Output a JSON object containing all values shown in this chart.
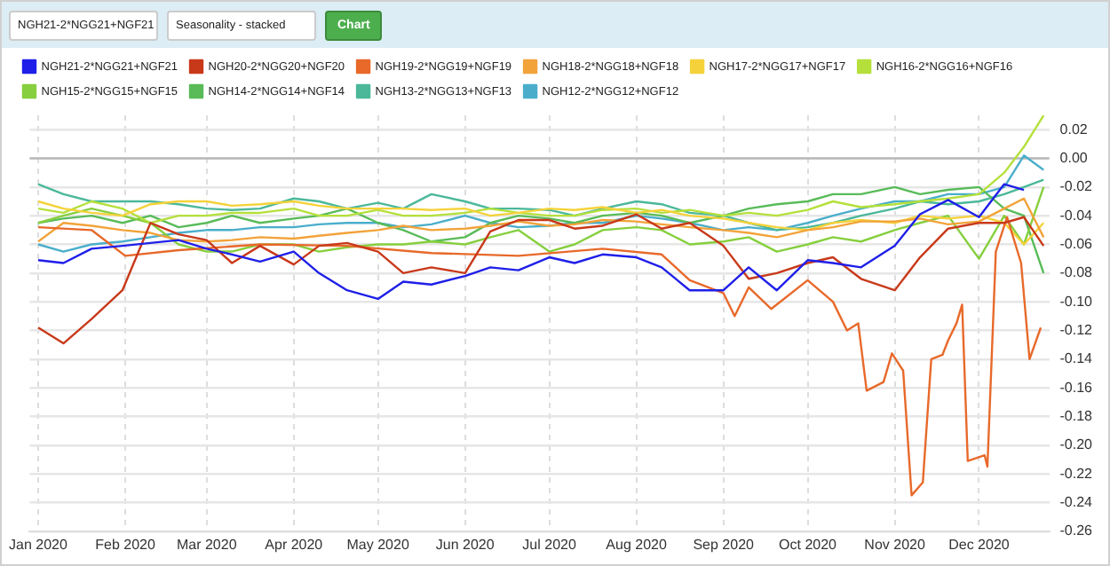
{
  "chart_data": {
    "type": "line",
    "annotations": [
      "NGH21-2*NGG21+NGF21",
      "Seasonality - stacked",
      "Chart"
    ],
    "x": [
      "2020-01-01",
      "2020-01-10",
      "2020-01-20",
      "2020-01-31",
      "2020-02-10",
      "2020-02-20",
      "2020-03-01",
      "2020-03-10",
      "2020-03-20",
      "2020-04-01",
      "2020-04-10",
      "2020-04-20",
      "2020-05-01",
      "2020-05-10",
      "2020-05-20",
      "2020-06-01",
      "2020-06-10",
      "2020-06-20",
      "2020-07-01",
      "2020-07-10",
      "2020-07-20",
      "2020-08-01",
      "2020-08-10",
      "2020-08-20",
      "2020-09-01",
      "2020-09-10",
      "2020-09-20",
      "2020-10-01",
      "2020-10-10",
      "2020-10-20",
      "2020-11-01",
      "2020-11-10",
      "2020-11-20",
      "2020-12-01",
      "2020-12-10",
      "2020-12-17",
      "2020-12-24"
    ],
    "series": [
      {
        "name": "NGH21-2*NGG21+NGF21",
        "color": "#1f1fe8",
        "values": [
          -0.071,
          -0.073,
          -0.063,
          -0.061,
          -0.059,
          -0.057,
          -0.063,
          -0.067,
          -0.072,
          -0.065,
          -0.08,
          -0.092,
          -0.098,
          -0.086,
          -0.088,
          -0.082,
          -0.076,
          -0.078,
          -0.069,
          -0.073,
          -0.067,
          -0.069,
          -0.076,
          -0.092,
          -0.092,
          -0.076,
          -0.092,
          -0.071,
          -0.073,
          -0.076,
          -0.061,
          -0.039,
          -0.029,
          -0.041,
          -0.018,
          -0.022,
          null
        ]
      },
      {
        "name": "NGH20-2*NGG20+NGF20",
        "color": "#c8391a",
        "values": [
          -0.118,
          -0.129,
          -0.112,
          -0.092,
          -0.045,
          -0.053,
          -0.057,
          -0.073,
          -0.061,
          -0.074,
          -0.061,
          -0.059,
          -0.065,
          -0.08,
          -0.076,
          -0.08,
          -0.051,
          -0.043,
          -0.043,
          -0.049,
          -0.047,
          -0.039,
          -0.049,
          -0.045,
          -0.061,
          -0.084,
          -0.08,
          -0.073,
          -0.069,
          -0.084,
          -0.092,
          -0.069,
          -0.049,
          -0.045,
          -0.045,
          -0.041,
          -0.061
        ]
      },
      {
        "name": "NGH19-2*NGG19+NGF19",
        "color": "#e8692a",
        "x": [
          "2020-01-01",
          "2020-01-20",
          "2020-02-01",
          "2020-02-20",
          "2020-03-20",
          "2020-04-20",
          "2020-05-20",
          "2020-06-20",
          "2020-07-20",
          "2020-08-10",
          "2020-08-20",
          "2020-09-01",
          "2020-09-05",
          "2020-09-10",
          "2020-09-18",
          "2020-10-01",
          "2020-10-10",
          "2020-10-15",
          "2020-10-19",
          "2020-10-22",
          "2020-10-28",
          "2020-10-31",
          "2020-11-04",
          "2020-11-07",
          "2020-11-11",
          "2020-11-14",
          "2020-11-18",
          "2020-11-20",
          "2020-11-23",
          "2020-11-25",
          "2020-11-27",
          "2020-12-03",
          "2020-12-04",
          "2020-12-07",
          "2020-12-11",
          "2020-12-16",
          "2020-12-19",
          "2020-12-23"
        ],
        "values": [
          -0.048,
          -0.05,
          -0.068,
          -0.064,
          -0.06,
          -0.061,
          -0.066,
          -0.068,
          -0.063,
          -0.067,
          -0.085,
          -0.094,
          -0.11,
          -0.09,
          -0.105,
          -0.085,
          -0.1,
          -0.12,
          -0.115,
          -0.162,
          -0.156,
          -0.136,
          -0.148,
          -0.235,
          -0.226,
          -0.14,
          -0.137,
          -0.127,
          -0.115,
          -0.102,
          -0.211,
          -0.207,
          -0.215,
          -0.065,
          -0.041,
          -0.073,
          -0.14,
          -0.118
        ]
      },
      {
        "name": "NGH18-2*NGG18+NGF18",
        "color": "#f2a33a",
        "values": [
          -0.058,
          -0.045,
          -0.047,
          -0.05,
          -0.052,
          -0.057,
          -0.058,
          -0.057,
          -0.055,
          -0.056,
          -0.054,
          -0.052,
          -0.05,
          -0.047,
          -0.05,
          -0.049,
          -0.047,
          -0.044,
          -0.047,
          -0.046,
          -0.043,
          -0.044,
          -0.046,
          -0.048,
          -0.05,
          -0.052,
          -0.055,
          -0.05,
          -0.048,
          -0.044,
          -0.044,
          -0.042,
          -0.046,
          -0.044,
          -0.035,
          -0.028,
          -0.055
        ]
      },
      {
        "name": "NGH17-2*NGG17+NGF17",
        "color": "#f5d23a",
        "values": [
          -0.03,
          -0.035,
          -0.038,
          -0.04,
          -0.032,
          -0.03,
          -0.03,
          -0.033,
          -0.032,
          -0.03,
          -0.033,
          -0.035,
          -0.035,
          -0.035,
          -0.036,
          -0.035,
          -0.04,
          -0.038,
          -0.035,
          -0.036,
          -0.034,
          -0.038,
          -0.036,
          -0.04,
          -0.042,
          -0.045,
          -0.048,
          -0.05,
          -0.045,
          -0.043,
          -0.045,
          -0.04,
          -0.042,
          -0.04,
          -0.045,
          -0.06,
          -0.045
        ]
      },
      {
        "name": "NGH16-2*NGG16+NGF16",
        "color": "#b5e03c",
        "values": [
          -0.035,
          -0.038,
          -0.03,
          -0.035,
          -0.045,
          -0.04,
          -0.04,
          -0.038,
          -0.038,
          -0.035,
          -0.04,
          -0.04,
          -0.036,
          -0.04,
          -0.04,
          -0.038,
          -0.035,
          -0.038,
          -0.04,
          -0.04,
          -0.036,
          -0.035,
          -0.038,
          -0.036,
          -0.04,
          -0.038,
          -0.04,
          -0.036,
          -0.03,
          -0.034,
          -0.032,
          -0.03,
          -0.028,
          -0.025,
          -0.01,
          0.008,
          0.03
        ]
      },
      {
        "name": "NGH15-2*NGG15+NGF15",
        "color": "#86cf3e",
        "values": [
          -0.045,
          -0.04,
          -0.035,
          -0.04,
          -0.045,
          -0.06,
          -0.065,
          -0.065,
          -0.06,
          -0.06,
          -0.065,
          -0.062,
          -0.06,
          -0.06,
          -0.058,
          -0.06,
          -0.055,
          -0.05,
          -0.065,
          -0.06,
          -0.05,
          -0.048,
          -0.05,
          -0.06,
          -0.058,
          -0.055,
          -0.065,
          -0.06,
          -0.055,
          -0.058,
          -0.05,
          -0.045,
          -0.04,
          -0.07,
          -0.04,
          -0.06,
          -0.02
        ]
      },
      {
        "name": "NGH14-2*NGG14+NGF14",
        "color": "#58bb58",
        "values": [
          -0.045,
          -0.042,
          -0.04,
          -0.045,
          -0.04,
          -0.048,
          -0.045,
          -0.04,
          -0.045,
          -0.042,
          -0.04,
          -0.035,
          -0.045,
          -0.05,
          -0.058,
          -0.055,
          -0.045,
          -0.04,
          -0.042,
          -0.045,
          -0.04,
          -0.038,
          -0.04,
          -0.045,
          -0.04,
          -0.035,
          -0.032,
          -0.03,
          -0.025,
          -0.025,
          -0.02,
          -0.025,
          -0.022,
          -0.02,
          -0.035,
          -0.04,
          -0.08
        ]
      },
      {
        "name": "NGH13-2*NGG13+NGF13",
        "color": "#4bb89a",
        "values": [
          -0.018,
          -0.025,
          -0.03,
          -0.03,
          -0.03,
          -0.032,
          -0.035,
          -0.036,
          -0.035,
          -0.028,
          -0.03,
          -0.035,
          -0.031,
          -0.035,
          -0.025,
          -0.03,
          -0.035,
          -0.035,
          -0.036,
          -0.04,
          -0.035,
          -0.03,
          -0.032,
          -0.038,
          -0.04,
          -0.045,
          -0.05,
          -0.048,
          -0.045,
          -0.04,
          -0.035,
          -0.03,
          -0.032,
          -0.03,
          -0.025,
          -0.02,
          -0.015
        ]
      },
      {
        "name": "NGH12-2*NGG12+NGF12",
        "color": "#4aaecb",
        "values": [
          -0.06,
          -0.065,
          -0.06,
          -0.058,
          -0.055,
          -0.052,
          -0.05,
          -0.05,
          -0.048,
          -0.048,
          -0.046,
          -0.045,
          -0.045,
          -0.048,
          -0.046,
          -0.04,
          -0.045,
          -0.048,
          -0.047,
          -0.045,
          -0.045,
          -0.04,
          -0.042,
          -0.045,
          -0.05,
          -0.048,
          -0.05,
          -0.045,
          -0.04,
          -0.035,
          -0.03,
          -0.03,
          -0.025,
          -0.025,
          -0.02,
          0.002,
          -0.008
        ]
      }
    ],
    "xlim": [
      "2019-12-29",
      "2020-12-26"
    ],
    "xticks": [
      {
        "value": "2020-01-01",
        "label": "Jan 2020"
      },
      {
        "value": "2020-02-01",
        "label": "Feb 2020"
      },
      {
        "value": "2020-03-01",
        "label": "Mar 2020"
      },
      {
        "value": "2020-04-01",
        "label": "Apr 2020"
      },
      {
        "value": "2020-05-01",
        "label": "May 2020"
      },
      {
        "value": "2020-06-01",
        "label": "Jun 2020"
      },
      {
        "value": "2020-07-01",
        "label": "Jul 2020"
      },
      {
        "value": "2020-08-01",
        "label": "Aug 2020"
      },
      {
        "value": "2020-09-01",
        "label": "Sep 2020"
      },
      {
        "value": "2020-10-01",
        "label": "Oct 2020"
      },
      {
        "value": "2020-11-01",
        "label": "Nov 2020"
      },
      {
        "value": "2020-12-01",
        "label": "Dec 2020"
      }
    ],
    "ylim": [
      -0.26,
      0.03
    ],
    "yticks": [
      {
        "value": -0.26,
        "label": "-0.26"
      },
      {
        "value": -0.24,
        "label": "-0.24"
      },
      {
        "value": -0.22,
        "label": "-0.22"
      },
      {
        "value": -0.2,
        "label": "-0.20"
      },
      {
        "value": -0.18,
        "label": "-0.18"
      },
      {
        "value": -0.16,
        "label": "-0.16"
      },
      {
        "value": -0.14,
        "label": "-0.14"
      },
      {
        "value": -0.12,
        "label": "-0.12"
      },
      {
        "value": -0.1,
        "label": "-0.10"
      },
      {
        "value": -0.08,
        "label": "-0.08"
      },
      {
        "value": -0.06,
        "label": "-0.06"
      },
      {
        "value": -0.04,
        "label": "-0.04"
      },
      {
        "value": -0.02,
        "label": "-0.02"
      },
      {
        "value": 0,
        "label": "0.00"
      },
      {
        "value": 0.02,
        "label": "0.02"
      }
    ],
    "ref_lines": [
      {
        "axis": "y",
        "value": 0,
        "color": "#b8b8b8"
      }
    ],
    "grid": true,
    "legend": "top",
    "marker": "none",
    "line_style": "solid"
  }
}
